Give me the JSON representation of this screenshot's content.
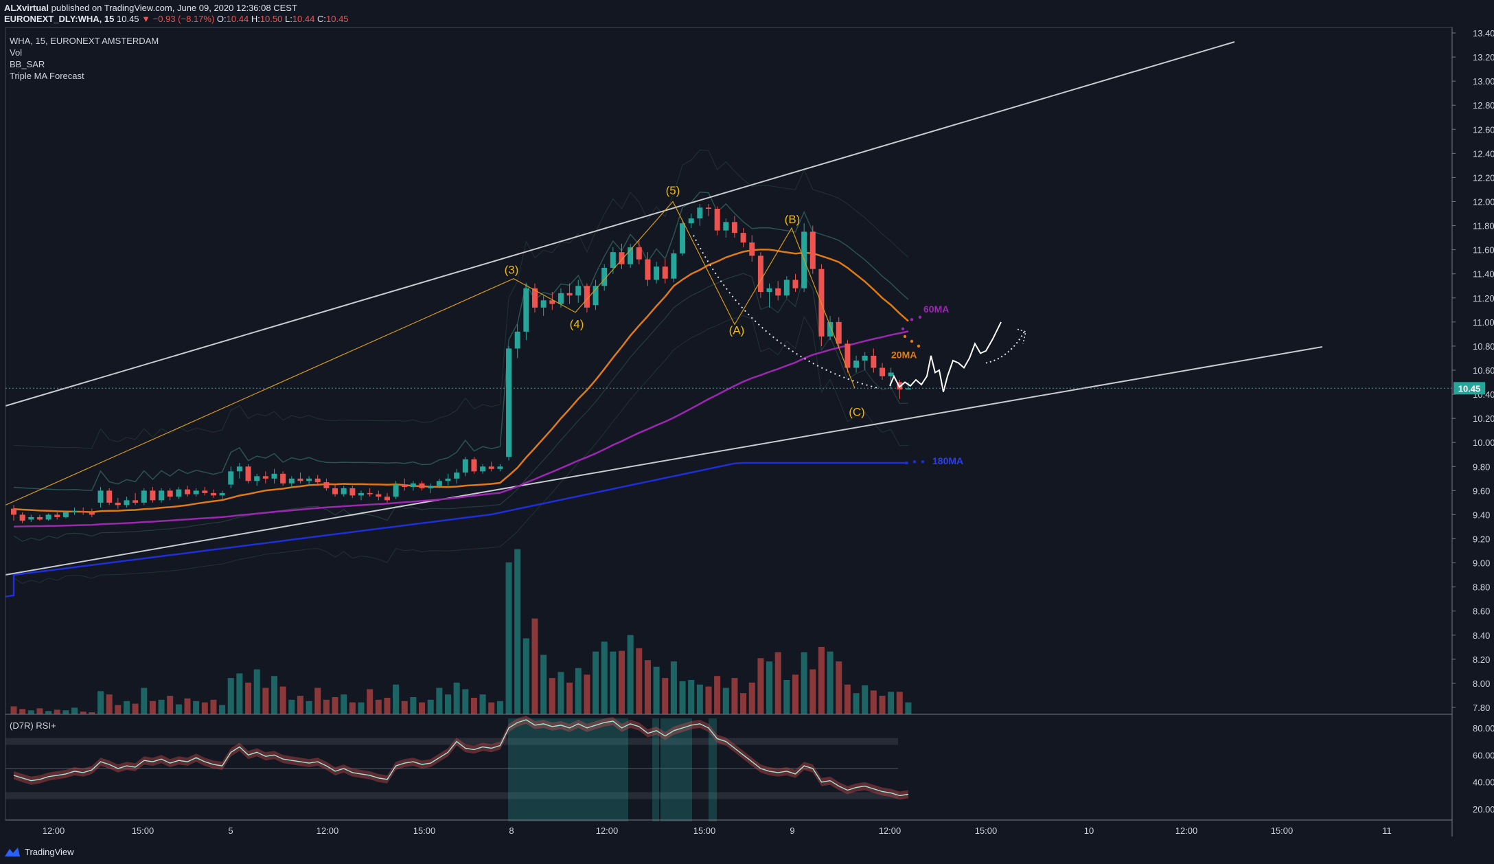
{
  "header": {
    "author": "ALXvirtual",
    "published_text": "published on TradingView.com, June 09, 2020 12:36:08 CEST",
    "symbol": "EURONEXT_DLY:WHA, 15",
    "last": "10.45",
    "change": "▼ −0.93 (−8.17%)",
    "o_label": "O:",
    "o_value": "10.44",
    "h_label": "H:",
    "h_value": "10.50",
    "l_label": "L:",
    "l_value": "10.44",
    "c_label": "C:",
    "c_value": "10.45"
  },
  "legend": {
    "symbol_line": "WHA, 15, EURONEXT AMSTERDAM",
    "indicators": [
      "Vol",
      "BB_SAR",
      "Triple MA Forecast"
    ]
  },
  "rsi_label": "(D7R) RSI+",
  "footer_brand": "TradingView",
  "colors": {
    "background": "#131722",
    "up": "#26a69a",
    "down": "#ef5350",
    "ma20": "#e07b14",
    "ma60": "#9c27b0",
    "ma180": "#1e2ed8",
    "wave": "#f0b90b"
  },
  "chart_data": [
    {
      "type": "candlestick",
      "y_ticks": [
        "13.40",
        "13.20",
        "13.00",
        "12.80",
        "12.60",
        "12.40",
        "12.20",
        "12.00",
        "11.80",
        "11.60",
        "11.40",
        "11.20",
        "11.00",
        "10.80",
        "10.60",
        "10.40",
        "10.20",
        "10.00",
        "9.80",
        "9.60",
        "9.40",
        "9.20",
        "9.00",
        "8.80",
        "8.60",
        "8.40",
        "8.20",
        "8.00",
        "7.80"
      ],
      "x_ticks": [
        "12:00",
        "15:00",
        "5",
        "12:00",
        "15:00",
        "8",
        "12:00",
        "15:00",
        "9",
        "12:00",
        "15:00",
        "10",
        "12:00",
        "15:00",
        "11"
      ],
      "ylim": [
        7.8,
        13.4
      ],
      "last_price": "10.45",
      "wave_labels": [
        "(3)",
        "(4)",
        "(5)",
        "(A)",
        "(B)",
        "(C)"
      ],
      "ma_labels": [
        "60MA",
        "20MA",
        "180MA"
      ],
      "candles": [
        [
          9.45,
          9.48,
          9.35,
          9.4
        ],
        [
          9.4,
          9.42,
          9.33,
          9.35
        ],
        [
          9.36,
          9.4,
          9.34,
          9.38
        ],
        [
          9.38,
          9.4,
          9.35,
          9.36
        ],
        [
          9.36,
          9.41,
          9.35,
          9.4
        ],
        [
          9.4,
          9.42,
          9.36,
          9.38
        ],
        [
          9.38,
          9.43,
          9.37,
          9.42
        ],
        [
          9.42,
          9.46,
          9.4,
          9.43
        ],
        [
          9.43,
          9.46,
          9.4,
          9.42
        ],
        [
          9.42,
          9.45,
          9.38,
          9.4
        ],
        [
          9.5,
          9.63,
          9.46,
          9.6
        ],
        [
          9.6,
          9.62,
          9.48,
          9.5
        ],
        [
          9.5,
          9.54,
          9.45,
          9.48
        ],
        [
          9.48,
          9.55,
          9.46,
          9.52
        ],
        [
          9.52,
          9.58,
          9.48,
          9.5
        ],
        [
          9.5,
          9.62,
          9.48,
          9.6
        ],
        [
          9.6,
          9.63,
          9.5,
          9.52
        ],
        [
          9.52,
          9.62,
          9.5,
          9.6
        ],
        [
          9.6,
          9.62,
          9.52,
          9.55
        ],
        [
          9.55,
          9.63,
          9.53,
          9.61
        ],
        [
          9.61,
          9.64,
          9.55,
          9.57
        ],
        [
          9.57,
          9.62,
          9.55,
          9.6
        ],
        [
          9.6,
          9.63,
          9.56,
          9.58
        ],
        [
          9.58,
          9.61,
          9.54,
          9.56
        ],
        [
          9.56,
          9.6,
          9.53,
          9.58
        ],
        [
          9.65,
          9.8,
          9.62,
          9.76
        ],
        [
          9.76,
          9.83,
          9.7,
          9.8
        ],
        [
          9.8,
          9.82,
          9.66,
          9.68
        ],
        [
          9.68,
          9.74,
          9.64,
          9.72
        ],
        [
          9.72,
          9.76,
          9.66,
          9.7
        ],
        [
          9.7,
          9.78,
          9.66,
          9.74
        ],
        [
          9.74,
          9.76,
          9.64,
          9.66
        ],
        [
          9.66,
          9.72,
          9.62,
          9.7
        ],
        [
          9.7,
          9.75,
          9.66,
          9.68
        ],
        [
          9.68,
          9.72,
          9.64,
          9.7
        ],
        [
          9.7,
          9.73,
          9.65,
          9.67
        ],
        [
          9.67,
          9.7,
          9.6,
          9.62
        ],
        [
          9.62,
          9.66,
          9.55,
          9.57
        ],
        [
          9.57,
          9.64,
          9.55,
          9.62
        ],
        [
          9.62,
          9.64,
          9.54,
          9.56
        ],
        [
          9.56,
          9.6,
          9.52,
          9.58
        ],
        [
          9.58,
          9.62,
          9.55,
          9.57
        ],
        [
          9.57,
          9.6,
          9.52,
          9.55
        ],
        [
          9.55,
          9.58,
          9.5,
          9.52
        ],
        [
          9.55,
          9.68,
          9.53,
          9.65
        ],
        [
          9.65,
          9.7,
          9.6,
          9.63
        ],
        [
          9.63,
          9.68,
          9.6,
          9.66
        ],
        [
          9.66,
          9.68,
          9.6,
          9.62
        ],
        [
          9.62,
          9.66,
          9.58,
          9.64
        ],
        [
          9.64,
          9.7,
          9.62,
          9.68
        ],
        [
          9.68,
          9.74,
          9.64,
          9.7
        ],
        [
          9.7,
          9.78,
          9.66,
          9.75
        ],
        [
          9.75,
          9.88,
          9.72,
          9.86
        ],
        [
          9.86,
          9.88,
          9.74,
          9.76
        ],
        [
          9.76,
          9.82,
          9.74,
          9.8
        ],
        [
          9.8,
          9.84,
          9.76,
          9.78
        ],
        [
          9.78,
          9.82,
          9.76,
          9.8
        ],
        [
          9.88,
          10.8,
          9.85,
          10.78
        ],
        [
          10.78,
          10.98,
          10.7,
          10.92
        ],
        [
          10.92,
          11.32,
          10.85,
          11.28
        ],
        [
          11.28,
          11.32,
          11.08,
          11.12
        ],
        [
          11.12,
          11.22,
          11.05,
          11.18
        ],
        [
          11.18,
          11.25,
          11.1,
          11.15
        ],
        [
          11.15,
          11.28,
          11.12,
          11.24
        ],
        [
          11.24,
          11.32,
          11.15,
          11.22
        ],
        [
          11.22,
          11.35,
          11.16,
          11.3
        ],
        [
          11.3,
          11.32,
          11.08,
          11.12
        ],
        [
          11.14,
          11.35,
          11.1,
          11.3
        ],
        [
          11.3,
          11.48,
          11.26,
          11.45
        ],
        [
          11.45,
          11.62,
          11.4,
          11.58
        ],
        [
          11.58,
          11.65,
          11.44,
          11.48
        ],
        [
          11.48,
          11.65,
          11.45,
          11.62
        ],
        [
          11.62,
          11.68,
          11.48,
          11.52
        ],
        [
          11.52,
          11.58,
          11.3,
          11.35
        ],
        [
          11.35,
          11.5,
          11.32,
          11.46
        ],
        [
          11.46,
          11.52,
          11.32,
          11.36
        ],
        [
          11.36,
          11.6,
          11.33,
          11.57
        ],
        [
          11.57,
          11.85,
          11.55,
          11.82
        ],
        [
          11.82,
          11.9,
          11.78,
          11.86
        ],
        [
          11.86,
          11.98,
          11.8,
          11.95
        ],
        [
          11.95,
          11.98,
          11.88,
          11.94
        ],
        [
          11.94,
          11.96,
          11.72,
          11.76
        ],
        [
          11.76,
          11.86,
          11.7,
          11.83
        ],
        [
          11.83,
          11.88,
          11.7,
          11.74
        ],
        [
          11.74,
          11.78,
          11.62,
          11.66
        ],
        [
          11.66,
          11.72,
          11.5,
          11.55
        ],
        [
          11.55,
          11.58,
          11.2,
          11.25
        ],
        [
          11.25,
          11.32,
          11.12,
          11.28
        ],
        [
          11.28,
          11.34,
          11.18,
          11.22
        ],
        [
          11.22,
          11.38,
          11.2,
          11.35
        ],
        [
          11.35,
          11.4,
          11.25,
          11.28
        ],
        [
          11.28,
          11.82,
          11.25,
          11.75
        ],
        [
          11.75,
          11.8,
          11.4,
          11.44
        ],
        [
          11.44,
          11.48,
          10.8,
          10.88
        ],
        [
          10.88,
          11.05,
          10.85,
          11.0
        ],
        [
          11.0,
          11.04,
          10.78,
          10.82
        ],
        [
          10.82,
          10.85,
          10.58,
          10.62
        ],
        [
          10.62,
          10.72,
          10.58,
          10.68
        ],
        [
          10.68,
          10.75,
          10.6,
          10.72
        ],
        [
          10.72,
          10.78,
          10.58,
          10.62
        ],
        [
          10.62,
          10.66,
          10.52,
          10.55
        ],
        [
          10.55,
          10.62,
          10.44,
          10.58
        ],
        [
          10.5,
          10.52,
          10.36,
          10.44
        ],
        [
          10.44,
          10.5,
          10.44,
          10.45
        ]
      ],
      "volume": [
        {
          "bars": "per candle",
          "values": [
            12,
            8,
            6,
            9,
            5,
            7,
            6,
            10,
            4,
            3,
            35,
            30,
            14,
            20,
            16,
            40,
            20,
            22,
            28,
            15,
            24,
            20,
            18,
            22,
            14,
            55,
            62,
            48,
            68,
            40,
            58,
            42,
            22,
            28,
            20,
            40,
            22,
            26,
            30,
            18,
            18,
            38,
            22,
            25,
            45,
            20,
            26,
            18,
            22,
            40,
            30,
            48,
            38,
            25,
            30,
            18,
            20,
            230,
            250,
            115,
            145,
            90,
            55,
            64,
            48,
            70,
            60,
            95,
            110,
            95,
            96,
            120,
            100,
            82,
            72,
            55,
            80,
            50,
            52,
            45,
            42,
            58,
            40,
            55,
            32,
            48,
            85,
            80,
            94,
            52,
            60,
            94,
            68,
            102,
            95,
            80,
            45,
            32,
            44,
            36,
            28,
            34,
            34,
            18
          ]
        }
      ],
      "rsi": {
        "levels": [
          70,
          30
        ],
        "ticks": [
          "80.00",
          "60.00",
          "40.00",
          "20.00"
        ],
        "values": [
          45,
          43,
          41,
          42,
          44,
          45,
          46,
          48,
          47,
          49,
          55,
          53,
          50,
          52,
          51,
          56,
          55,
          57,
          54,
          56,
          55,
          58,
          55,
          53,
          52,
          62,
          66,
          60,
          62,
          59,
          60,
          57,
          56,
          55,
          54,
          55,
          52,
          48,
          50,
          47,
          46,
          45,
          43,
          42,
          52,
          54,
          55,
          53,
          54,
          58,
          62,
          70,
          65,
          64,
          66,
          65,
          67,
          80,
          84,
          86,
          82,
          83,
          81,
          82,
          80,
          83,
          80,
          82,
          84,
          85,
          80,
          83,
          81,
          76,
          78,
          74,
          78,
          80,
          82,
          83,
          80,
          72,
          70,
          65,
          60,
          55,
          50,
          48,
          47,
          48,
          46,
          52,
          50,
          40,
          41,
          37,
          34,
          36,
          37,
          35,
          33,
          32,
          30,
          31
        ]
      }
    }
  ]
}
